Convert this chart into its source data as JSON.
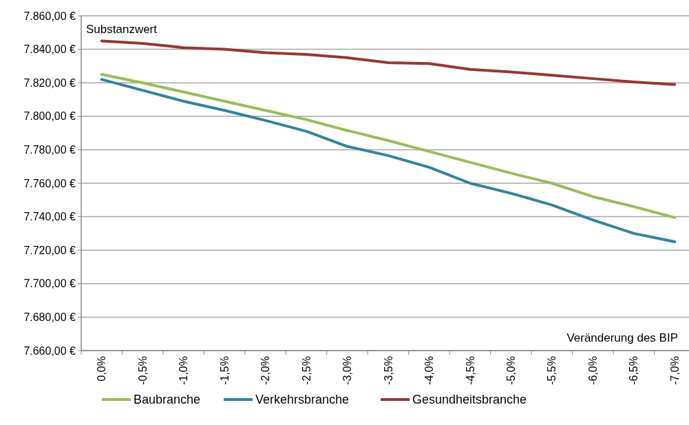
{
  "chart_data": {
    "type": "line",
    "ylabel": "Substanzwert",
    "xlabel": "Veränderung des BIP",
    "categories": [
      "0,0%",
      "-0,5%",
      "-1,0%",
      "-1,5%",
      "-2,0%",
      "-2,5%",
      "-3,0%",
      "-3,5%",
      "-4,0%",
      "-4,5%",
      "-5,0%",
      "-5,5%",
      "-6,0%",
      "-6,5%",
      "-7,0%"
    ],
    "series": [
      {
        "name": "Baubranche",
        "color": "#9bbb59",
        "values": [
          7825,
          7820,
          7814.5,
          7809,
          7803.5,
          7798,
          7791.5,
          7785.5,
          7779,
          7772.5,
          7766,
          7760,
          7752,
          7746,
          7739.5
        ]
      },
      {
        "name": "Verkehrsbranche",
        "color": "#31849b",
        "values": [
          7822,
          7815.5,
          7809,
          7803.5,
          7797.5,
          7791,
          7782,
          7776.5,
          7769.5,
          7760,
          7754,
          7747,
          7738,
          7730,
          7725
        ]
      },
      {
        "name": "Gesundheitsbranche",
        "color": "#953735",
        "values": [
          7845,
          7843.5,
          7841,
          7840,
          7838,
          7837,
          7835,
          7832,
          7831.5,
          7828,
          7826.5,
          7824.5,
          7822.5,
          7820.5,
          7819
        ]
      }
    ],
    "ylim": [
      7660,
      7860
    ],
    "yticks": [
      {
        "value": 7660,
        "label": "7.660,00 €"
      },
      {
        "value": 7680,
        "label": "7.680,00 €"
      },
      {
        "value": 7700,
        "label": "7.700,00 €"
      },
      {
        "value": 7720,
        "label": "7.720,00 €"
      },
      {
        "value": 7740,
        "label": "7.740,00 €"
      },
      {
        "value": 7760,
        "label": "7.760,00 €"
      },
      {
        "value": 7780,
        "label": "7.780,00 €"
      },
      {
        "value": 7800,
        "label": "7.800,00 €"
      },
      {
        "value": 7820,
        "label": "7.820,00 €"
      },
      {
        "value": 7840,
        "label": "7.840,00 €"
      },
      {
        "value": 7860,
        "label": "7.860,00 €"
      }
    ],
    "grid": "y",
    "legend": "bottom",
    "marker": "none",
    "line_style": "solid"
  }
}
